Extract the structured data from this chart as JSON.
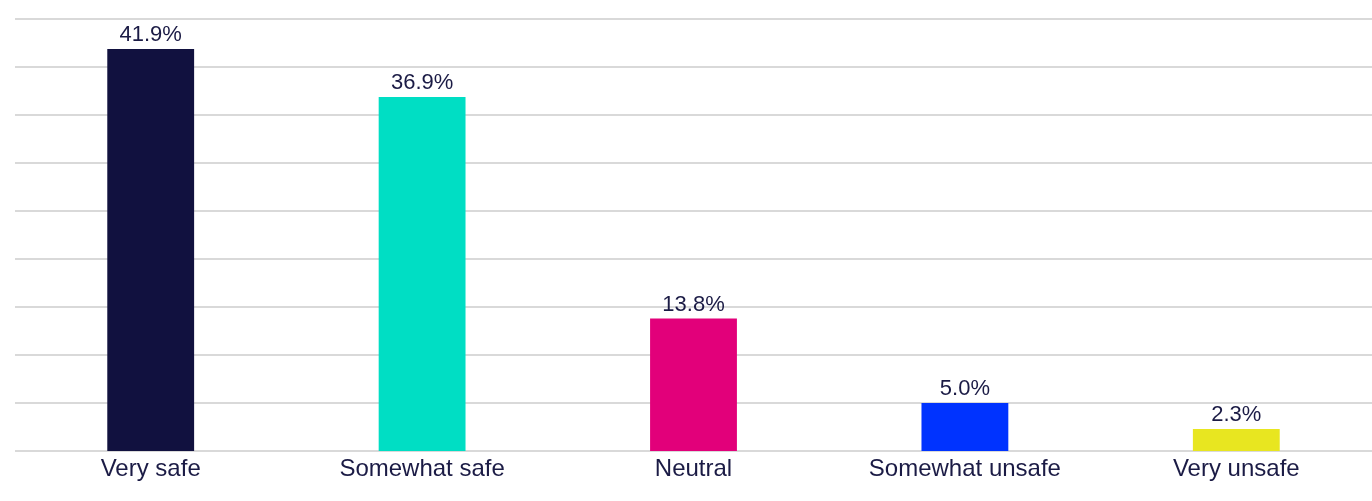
{
  "chart_data": {
    "type": "bar",
    "categories": [
      "Very safe",
      "Somewhat safe",
      "Neutral",
      "Somewhat unsafe",
      "Very unsafe"
    ],
    "values": [
      41.9,
      36.9,
      13.8,
      5.0,
      2.3
    ],
    "colors": [
      "#11113f",
      "#00dec4",
      "#e2007a",
      "#0033ff",
      "#e8e620"
    ],
    "value_labels": [
      "41.9%",
      "36.9%",
      "13.8%",
      "5.0%",
      "2.3%"
    ],
    "ylim": [
      0,
      47
    ],
    "yticks": [
      {
        "value": 0,
        "label": null
      },
      {
        "value": 5,
        "label": null
      },
      {
        "value": 10,
        "label": null
      },
      {
        "value": 15,
        "label": null
      },
      {
        "value": 20,
        "label": null
      },
      {
        "value": 25,
        "label": null
      },
      {
        "value": 30,
        "label": null
      },
      {
        "value": 35,
        "label": null
      },
      {
        "value": 40,
        "label": null
      },
      {
        "value": 45,
        "label": null
      }
    ],
    "grid": "y",
    "tick_labels": "x"
  }
}
